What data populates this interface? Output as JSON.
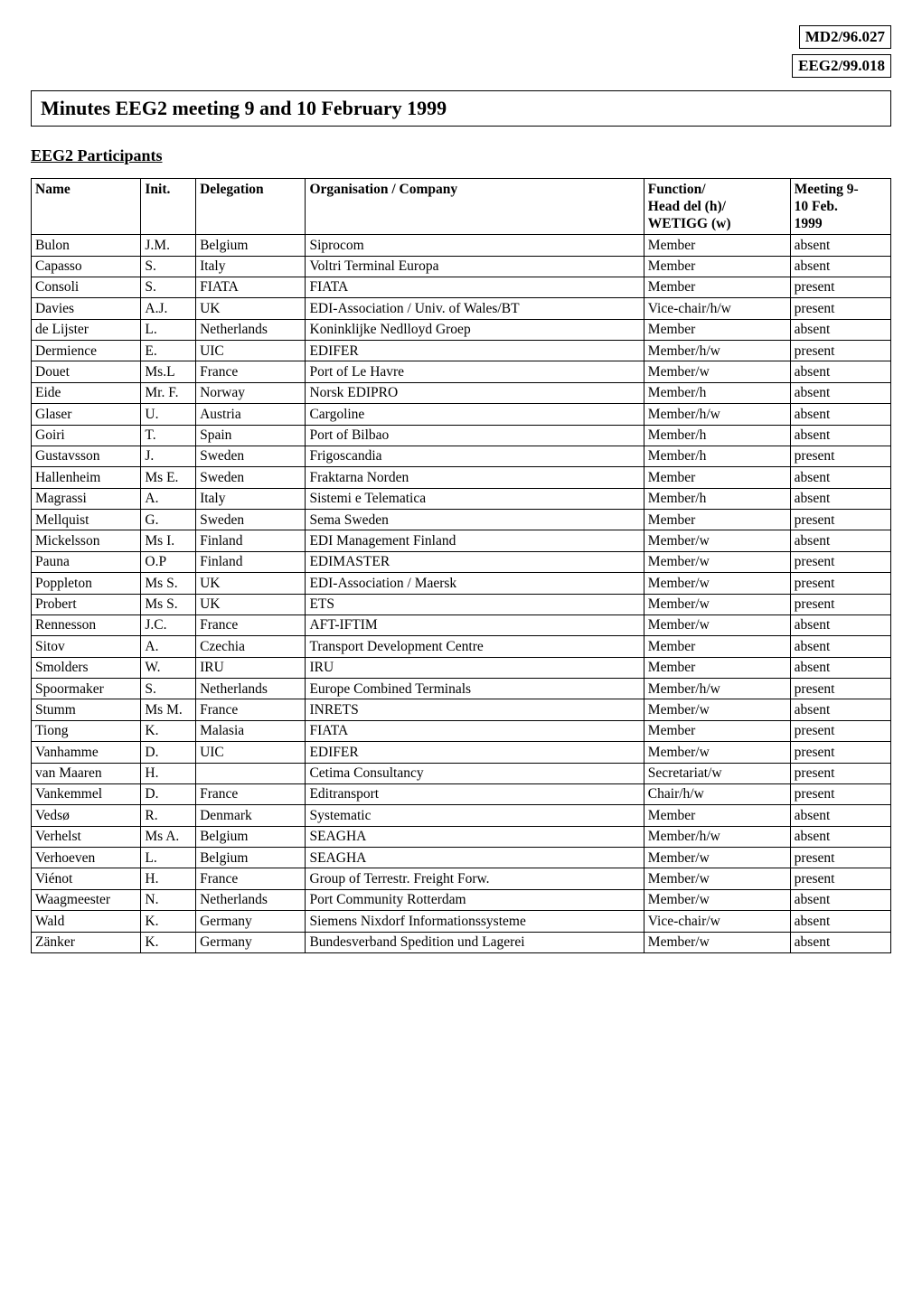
{
  "tags": {
    "tag1": "MD2/96.027",
    "tag2": "EEG2/99.018"
  },
  "title": "Minutes EEG2 meeting 9 and 10 February 1999",
  "section_heading": "EEG2 Participants",
  "table": {
    "headers": {
      "name": "Name",
      "init": "Init.",
      "delegation": "Delegation",
      "organisation": "Organisation / Company",
      "function": "Function/",
      "function_sub1": "Head del (h)/",
      "function_sub2": "WETIGG (w)",
      "meeting": "Meeting 9-",
      "meeting_sub1": "10 Feb.",
      "meeting_sub2": "1999"
    },
    "rows": [
      {
        "name": "Bulon",
        "init": "J.M.",
        "delegation": "Belgium",
        "org": "Siprocom",
        "func": "Member",
        "meet": "absent"
      },
      {
        "name": "Capasso",
        "init": "S.",
        "delegation": "Italy",
        "org": "Voltri Terminal Europa",
        "func": "Member",
        "meet": "absent"
      },
      {
        "name": "Consoli",
        "init": "S.",
        "delegation": "FIATA",
        "org": "FIATA",
        "func": "Member",
        "meet": "present"
      },
      {
        "name": "Davies",
        "init": "A.J.",
        "delegation": "UK",
        "org": "EDI-Association / Univ. of Wales/BT",
        "func": "Vice-chair/h/w",
        "meet": "present"
      },
      {
        "name": "de Lijster",
        "init": "L.",
        "delegation": "Netherlands",
        "org": "Koninklijke Nedlloyd Groep",
        "func": "Member",
        "meet": "absent"
      },
      {
        "name": "Dermience",
        "init": "E.",
        "delegation": "UIC",
        "org": "EDIFER",
        "func": "Member/h/w",
        "meet": "present"
      },
      {
        "name": "Douet",
        "init": "Ms.L",
        "delegation": "France",
        "org": "Port of Le Havre",
        "func": "Member/w",
        "meet": "absent"
      },
      {
        "name": "Eide",
        "init": "Mr. F.",
        "delegation": "Norway",
        "org": "Norsk EDIPRO",
        "func": "Member/h",
        "meet": "absent"
      },
      {
        "name": "Glaser",
        "init": "U.",
        "delegation": "Austria",
        "org": "Cargoline",
        "func": "Member/h/w",
        "meet": "absent"
      },
      {
        "name": "Goiri",
        "init": "T.",
        "delegation": "Spain",
        "org": "Port of Bilbao",
        "func": "Member/h",
        "meet": "absent"
      },
      {
        "name": "Gustavsson",
        "init": "J.",
        "delegation": "Sweden",
        "org": "Frigoscandia",
        "func": "Member/h",
        "meet": "present"
      },
      {
        "name": "Hallenheim",
        "init": "Ms E.",
        "delegation": "Sweden",
        "org": "Fraktarna Norden",
        "func": "Member",
        "meet": "absent"
      },
      {
        "name": "Magrassi",
        "init": "A.",
        "delegation": "Italy",
        "org": "Sistemi e Telematica",
        "func": "Member/h",
        "meet": "absent"
      },
      {
        "name": "Mellquist",
        "init": "G.",
        "delegation": "Sweden",
        "org": "Sema Sweden",
        "func": "Member",
        "meet": "present"
      },
      {
        "name": "Mickelsson",
        "init": "Ms I.",
        "delegation": "Finland",
        "org": "EDI Management Finland",
        "func": "Member/w",
        "meet": "absent"
      },
      {
        "name": "Pauna",
        "init": "O.P",
        "delegation": "Finland",
        "org": "EDIMASTER",
        "func": "Member/w",
        "meet": "present"
      },
      {
        "name": "Poppleton",
        "init": "Ms S.",
        "delegation": "UK",
        "org": "EDI-Association / Maersk",
        "func": "Member/w",
        "meet": "present"
      },
      {
        "name": "Probert",
        "init": "Ms S.",
        "delegation": "UK",
        "org": "ETS",
        "func": "Member/w",
        "meet": "present"
      },
      {
        "name": "Rennesson",
        "init": "J.C.",
        "delegation": "France",
        "org": "AFT-IFTIM",
        "func": "Member/w",
        "meet": "absent"
      },
      {
        "name": "Sitov",
        "init": "A.",
        "delegation": "Czechia",
        "org": "Transport Development Centre",
        "func": "Member",
        "meet": "absent"
      },
      {
        "name": "Smolders",
        "init": "W.",
        "delegation": "IRU",
        "org": "IRU",
        "func": "Member",
        "meet": "absent"
      },
      {
        "name": "Spoormaker",
        "init": "S.",
        "delegation": "Netherlands",
        "org": "Europe Combined Terminals",
        "func": "Member/h/w",
        "meet": "present"
      },
      {
        "name": "Stumm",
        "init": "Ms M.",
        "delegation": "France",
        "org": "INRETS",
        "func": "Member/w",
        "meet": "absent"
      },
      {
        "name": "Tiong",
        "init": "K.",
        "delegation": "Malasia",
        "org": "FIATA",
        "func": "Member",
        "meet": "present"
      },
      {
        "name": "Vanhamme",
        "init": "D.",
        "delegation": "UIC",
        "org": "EDIFER",
        "func": "Member/w",
        "meet": "present"
      },
      {
        "name": "van Maaren",
        "init": "H.",
        "delegation": "",
        "org": "Cetima Consultancy",
        "func": "Secretariat/w",
        "meet": "present"
      },
      {
        "name": "Vankemmel",
        "init": "D.",
        "delegation": "France",
        "org": "Editransport",
        "func": "Chair/h/w",
        "meet": "present"
      },
      {
        "name": "Vedsø",
        "init": "R.",
        "delegation": "Denmark",
        "org": "Systematic",
        "func": "Member",
        "meet": "absent"
      },
      {
        "name": "Verhelst",
        "init": "Ms A.",
        "delegation": "Belgium",
        "org": "SEAGHA",
        "func": "Member/h/w",
        "meet": "absent"
      },
      {
        "name": "Verhoeven",
        "init": "L.",
        "delegation": "Belgium",
        "org": "SEAGHA",
        "func": "Member/w",
        "meet": "present"
      },
      {
        "name": "Viénot",
        "init": "H.",
        "delegation": "France",
        "org": "Group of Terrestr. Freight Forw.",
        "func": "Member/w",
        "meet": "present"
      },
      {
        "name": "Waagmeester",
        "init": "N.",
        "delegation": "Netherlands",
        "org": "Port Community Rotterdam",
        "func": "Member/w",
        "meet": "absent"
      },
      {
        "name": "Wald",
        "init": "K.",
        "delegation": "Germany",
        "org": "Siemens Nixdorf Informationssysteme",
        "func": "Vice-chair/w",
        "meet": "absent"
      },
      {
        "name": "Zänker",
        "init": "K.",
        "delegation": "Germany",
        "org": "Bundesverband Spedition und Lagerei",
        "func": "Member/w",
        "meet": "absent"
      }
    ]
  }
}
